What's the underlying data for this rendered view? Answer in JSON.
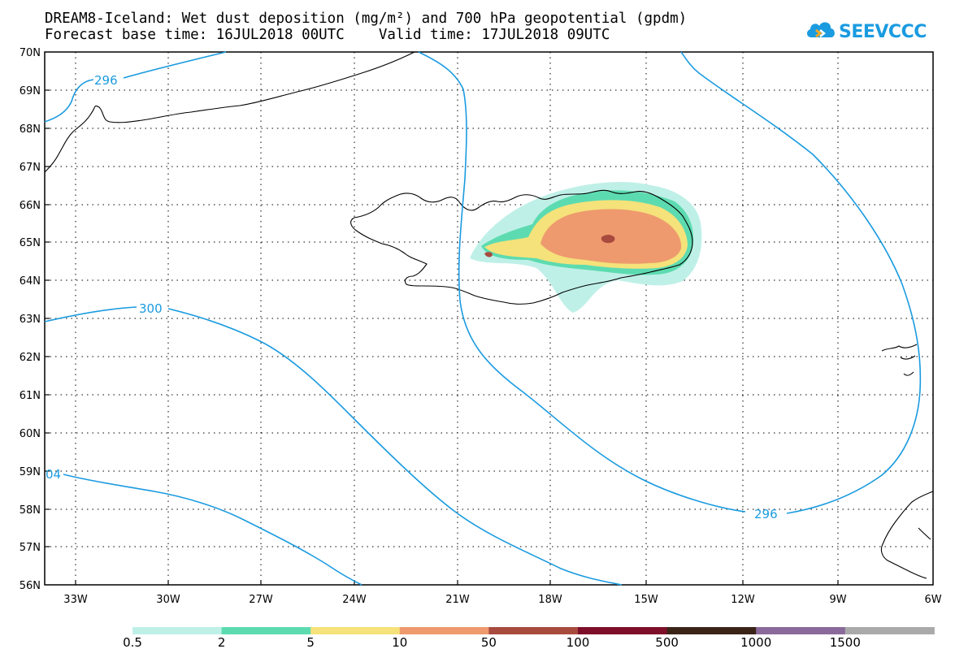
{
  "header": {
    "title_line1": "DREAM8-Iceland: Wet dust deposition (mg/m²) and 700 hPa geopotential (gpdm)",
    "title_line2": "Forecast base time: 16JUL2018 00UTC    Valid time: 17JUL2018 09UTC"
  },
  "logo": {
    "text": "SEEVCCC",
    "icon": "cloud-logo-icon",
    "color": "#1a9be0"
  },
  "map": {
    "lat_labels": [
      "70N",
      "69N",
      "68N",
      "67N",
      "66N",
      "65N",
      "64N",
      "63N",
      "62N",
      "61N",
      "60N",
      "59N",
      "58N",
      "57N",
      "56N"
    ],
    "lon_labels": [
      "33W",
      "30W",
      "27W",
      "24W",
      "21W",
      "18W",
      "15W",
      "12W",
      "9W",
      "6W"
    ],
    "contour_labels": [
      "296",
      "300",
      "296",
      "04"
    ],
    "contour_color": "#1a9be0"
  },
  "colorbar": {
    "colors": [
      "#bff0e8",
      "#5ddbb0",
      "#f5e27a",
      "#ee9a6e",
      "#a84a3e",
      "#7d0f2a",
      "#3a2418",
      "#8a6a9a",
      "#aaaaaa"
    ],
    "labels": [
      "0.5",
      "2",
      "5",
      "10",
      "50",
      "100",
      "500",
      "1000",
      "1500"
    ]
  }
}
